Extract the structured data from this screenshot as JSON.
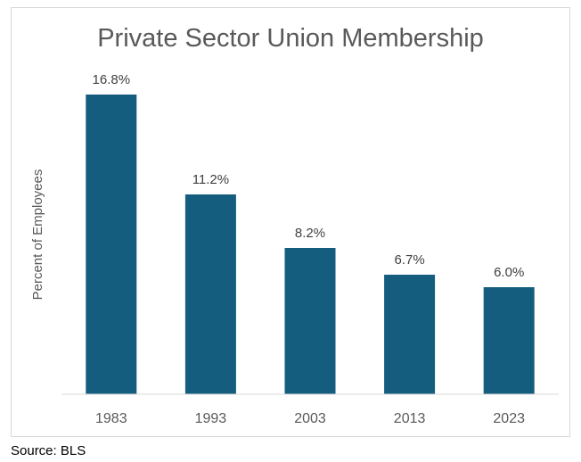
{
  "chart_data": {
    "type": "bar",
    "title": "Private Sector Union Membership",
    "ylabel": "Percent of Employees",
    "xlabel": "",
    "categories": [
      "1983",
      "1993",
      "2003",
      "2013",
      "2023"
    ],
    "values": [
      16.8,
      11.2,
      8.2,
      6.7,
      6.0
    ],
    "data_labels": [
      "16.8%",
      "11.2%",
      "8.2%",
      "6.7%",
      "6.0%"
    ],
    "ylim": [
      0,
      17.8
    ],
    "grid": false,
    "legend": "none",
    "bar_color": "#155d7e"
  },
  "source": "Source: BLS"
}
